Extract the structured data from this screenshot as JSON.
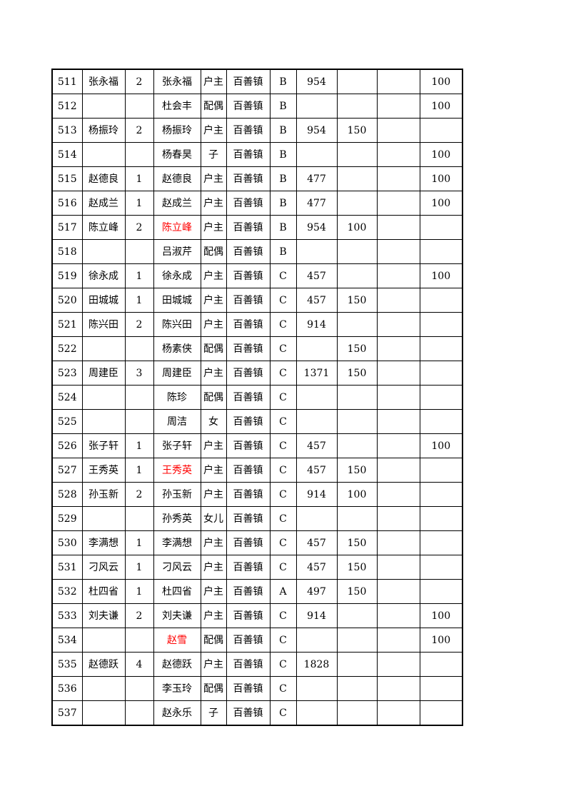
{
  "page": {
    "background_color": "#ffffff",
    "text_color": "#000000",
    "highlight_name_color": "#ff0000",
    "grid_line_color": "#000000"
  },
  "table": {
    "column_names": [
      "row-id",
      "household-head-name",
      "household-size",
      "member-name",
      "relation-to-head",
      "town",
      "grade",
      "amount-1",
      "amount-2",
      "blank",
      "amount-3"
    ],
    "rows": [
      {
        "cells": [
          "511",
          "张永福",
          "2",
          "张永福",
          "户主",
          "百善镇",
          "B",
          "954",
          "",
          "",
          "100"
        ],
        "red_name": false
      },
      {
        "cells": [
          "512",
          "",
          "",
          "杜会丰",
          "配偶",
          "百善镇",
          "B",
          "",
          "",
          "",
          "100"
        ],
        "red_name": false
      },
      {
        "cells": [
          "513",
          "杨振玲",
          "2",
          "杨振玲",
          "户主",
          "百善镇",
          "B",
          "954",
          "150",
          "",
          ""
        ],
        "red_name": false
      },
      {
        "cells": [
          "514",
          "",
          "",
          "杨春昊",
          "子",
          "百善镇",
          "B",
          "",
          "",
          "",
          "100"
        ],
        "red_name": false
      },
      {
        "cells": [
          "515",
          "赵德良",
          "1",
          "赵德良",
          "户主",
          "百善镇",
          "B",
          "477",
          "",
          "",
          "100"
        ],
        "red_name": false
      },
      {
        "cells": [
          "516",
          "赵成兰",
          "1",
          "赵成兰",
          "户主",
          "百善镇",
          "B",
          "477",
          "",
          "",
          "100"
        ],
        "red_name": false
      },
      {
        "cells": [
          "517",
          "陈立峰",
          "2",
          "陈立峰",
          "户主",
          "百善镇",
          "B",
          "954",
          "100",
          "",
          ""
        ],
        "red_name": true
      },
      {
        "cells": [
          "518",
          "",
          "",
          "吕淑芹",
          "配偶",
          "百善镇",
          "B",
          "",
          "",
          "",
          ""
        ],
        "red_name": false
      },
      {
        "cells": [
          "519",
          "徐永成",
          "1",
          "徐永成",
          "户主",
          "百善镇",
          "C",
          "457",
          "",
          "",
          "100"
        ],
        "red_name": false
      },
      {
        "cells": [
          "520",
          "田城城",
          "1",
          "田城城",
          "户主",
          "百善镇",
          "C",
          "457",
          "150",
          "",
          ""
        ],
        "red_name": false
      },
      {
        "cells": [
          "521",
          "陈兴田",
          "2",
          "陈兴田",
          "户主",
          "百善镇",
          "C",
          "914",
          "",
          "",
          ""
        ],
        "red_name": false
      },
      {
        "cells": [
          "522",
          "",
          "",
          "杨素侠",
          "配偶",
          "百善镇",
          "C",
          "",
          "150",
          "",
          ""
        ],
        "red_name": false
      },
      {
        "cells": [
          "523",
          "周建臣",
          "3",
          "周建臣",
          "户主",
          "百善镇",
          "C",
          "1371",
          "150",
          "",
          ""
        ],
        "red_name": false
      },
      {
        "cells": [
          "524",
          "",
          "",
          "陈珍",
          "配偶",
          "百善镇",
          "C",
          "",
          "",
          "",
          ""
        ],
        "red_name": false
      },
      {
        "cells": [
          "525",
          "",
          "",
          "周洁",
          "女",
          "百善镇",
          "C",
          "",
          "",
          "",
          ""
        ],
        "red_name": false
      },
      {
        "cells": [
          "526",
          "张子轩",
          "1",
          "张子轩",
          "户主",
          "百善镇",
          "C",
          "457",
          "",
          "",
          "100"
        ],
        "red_name": false
      },
      {
        "cells": [
          "527",
          "王秀英",
          "1",
          "王秀英",
          "户主",
          "百善镇",
          "C",
          "457",
          "150",
          "",
          ""
        ],
        "red_name": true
      },
      {
        "cells": [
          "528",
          "孙玉新",
          "2",
          "孙玉新",
          "户主",
          "百善镇",
          "C",
          "914",
          "100",
          "",
          ""
        ],
        "red_name": false
      },
      {
        "cells": [
          "529",
          "",
          "",
          "孙秀英",
          "女儿",
          "百善镇",
          "C",
          "",
          "",
          "",
          ""
        ],
        "red_name": false
      },
      {
        "cells": [
          "530",
          "李满想",
          "1",
          "李满想",
          "户主",
          "百善镇",
          "C",
          "457",
          "150",
          "",
          ""
        ],
        "red_name": false
      },
      {
        "cells": [
          "531",
          "刁风云",
          "1",
          "刁风云",
          "户主",
          "百善镇",
          "C",
          "457",
          "150",
          "",
          ""
        ],
        "red_name": false
      },
      {
        "cells": [
          "532",
          "杜四省",
          "1",
          "杜四省",
          "户主",
          "百善镇",
          "A",
          "497",
          "150",
          "",
          ""
        ],
        "red_name": false
      },
      {
        "cells": [
          "533",
          "刘夫谦",
          "2",
          "刘夫谦",
          "户主",
          "百善镇",
          "C",
          "914",
          "",
          "",
          "100"
        ],
        "red_name": false
      },
      {
        "cells": [
          "534",
          "",
          "",
          "赵雪",
          "配偶",
          "百善镇",
          "C",
          "",
          "",
          "",
          "100"
        ],
        "red_name": true
      },
      {
        "cells": [
          "535",
          "赵德跃",
          "4",
          "赵德跃",
          "户主",
          "百善镇",
          "C",
          "1828",
          "",
          "",
          ""
        ],
        "red_name": false
      },
      {
        "cells": [
          "536",
          "",
          "",
          "李玉玲",
          "配偶",
          "百善镇",
          "C",
          "",
          "",
          "",
          ""
        ],
        "red_name": false
      },
      {
        "cells": [
          "537",
          "",
          "",
          "赵永乐",
          "子",
          "百善镇",
          "C",
          "",
          "",
          "",
          ""
        ],
        "red_name": false
      }
    ]
  }
}
